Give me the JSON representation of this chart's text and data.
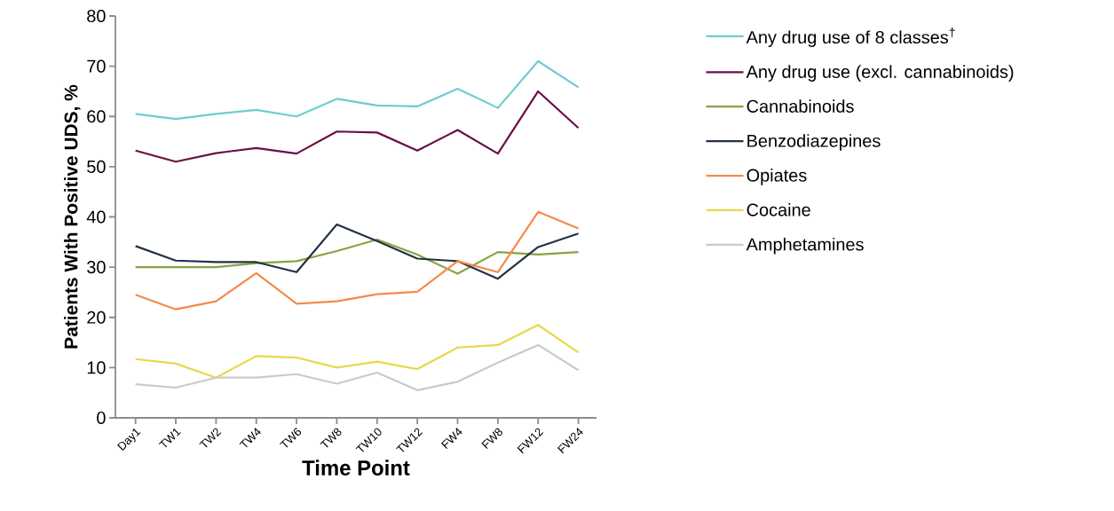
{
  "chart_data": {
    "type": "line",
    "xlabel": "Time Point",
    "ylabel": "Patients With Positive UDS, %",
    "categories": [
      "Day1",
      "TW1",
      "TW2",
      "TW4",
      "TW6",
      "TW8",
      "TW10",
      "TW12",
      "FW4",
      "FW8",
      "FW12",
      "FW24"
    ],
    "ylim": [
      0,
      80
    ],
    "yticks": [
      0,
      10,
      20,
      30,
      40,
      50,
      60,
      70,
      80
    ],
    "grid": false,
    "legend": "right",
    "marker": "none",
    "line_style": "solid",
    "series": [
      {
        "name": "Any drug use of 8 classes$^{†}$",
        "color": "#6ecdd1",
        "values": [
          60.5,
          59.5,
          60.5,
          61.3,
          60,
          63.5,
          62.2,
          62,
          65.5,
          61.7,
          71,
          65.8
        ]
      },
      {
        "name": "Any drug use (excl. cannabinoids)",
        "color": "#6b0f45",
        "values": [
          53.2,
          51,
          52.7,
          53.7,
          52.6,
          57,
          56.8,
          53.2,
          57.3,
          52.6,
          65,
          57.7
        ]
      },
      {
        "name": "Cannabinoids",
        "color": "#8aa243",
        "values": [
          30,
          30,
          30,
          30.8,
          31.2,
          33.2,
          35.5,
          32.5,
          28.7,
          33,
          32.5,
          33
        ]
      },
      {
        "name": "Benzodiazepines",
        "color": "#243144",
        "values": [
          34.2,
          31.3,
          31,
          31,
          29,
          38.5,
          35.2,
          31.7,
          31.2,
          27.7,
          34,
          36.7
        ]
      },
      {
        "name": "Opiates",
        "color": "#f58a4b",
        "values": [
          24.5,
          21.6,
          23.2,
          28.8,
          22.7,
          23.2,
          24.6,
          25.1,
          31.2,
          29,
          41,
          37.7
        ]
      },
      {
        "name": "Cocaine",
        "color": "#e8d84a",
        "values": [
          11.7,
          10.8,
          8,
          12.3,
          12,
          10,
          11.2,
          9.7,
          14,
          14.5,
          18.5,
          13
        ]
      },
      {
        "name": "Amphetamines",
        "color": "#c8cacd",
        "values": [
          6.7,
          6,
          8,
          8,
          8.7,
          6.8,
          9,
          5.5,
          7.2,
          11,
          14.5,
          9.5
        ]
      }
    ]
  }
}
